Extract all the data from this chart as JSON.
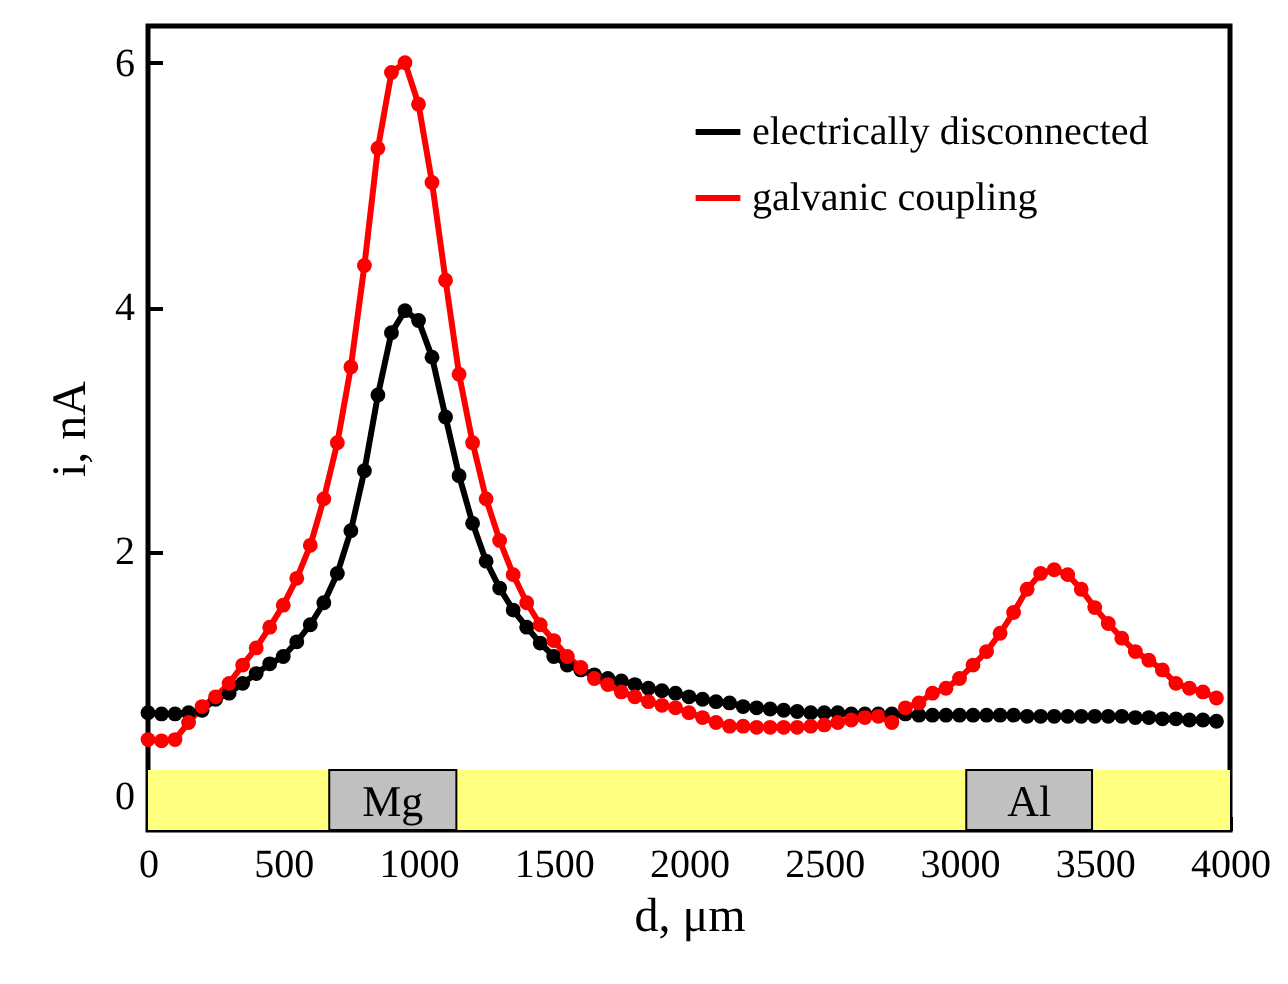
{
  "chart_data": {
    "type": "line",
    "xlabel": "d, μm",
    "ylabel": "i, nA",
    "x": [
      0,
      50,
      100,
      150,
      200,
      250,
      300,
      350,
      400,
      450,
      500,
      550,
      600,
      650,
      700,
      750,
      800,
      850,
      900,
      950,
      1000,
      1050,
      1100,
      1150,
      1200,
      1250,
      1300,
      1350,
      1400,
      1450,
      1500,
      1550,
      1600,
      1650,
      1700,
      1750,
      1800,
      1850,
      1900,
      1950,
      2000,
      2050,
      2100,
      2150,
      2200,
      2250,
      2300,
      2350,
      2400,
      2450,
      2500,
      2550,
      2600,
      2650,
      2700,
      2750,
      2800,
      2850,
      2900,
      2950,
      3000,
      3050,
      3100,
      3150,
      3200,
      3250,
      3300,
      3350,
      3400,
      3450,
      3500,
      3550,
      3600,
      3650,
      3700,
      3750,
      3800,
      3850,
      3900,
      3950
    ],
    "series": [
      {
        "name": "electrically disconnected",
        "color": "#000000",
        "values": [
          0.68,
          0.67,
          0.67,
          0.68,
          0.7,
          0.79,
          0.84,
          0.92,
          1.0,
          1.08,
          1.14,
          1.26,
          1.4,
          1.58,
          1.82,
          2.17,
          2.66,
          3.28,
          3.79,
          3.97,
          3.89,
          3.59,
          3.1,
          2.62,
          2.23,
          1.92,
          1.7,
          1.52,
          1.38,
          1.25,
          1.14,
          1.07,
          1.03,
          0.99,
          0.96,
          0.94,
          0.91,
          0.88,
          0.86,
          0.84,
          0.81,
          0.79,
          0.77,
          0.76,
          0.73,
          0.72,
          0.71,
          0.7,
          0.69,
          0.68,
          0.68,
          0.68,
          0.67,
          0.67,
          0.67,
          0.67,
          0.67,
          0.66,
          0.66,
          0.66,
          0.66,
          0.66,
          0.66,
          0.66,
          0.66,
          0.65,
          0.65,
          0.65,
          0.65,
          0.65,
          0.65,
          0.65,
          0.65,
          0.64,
          0.64,
          0.63,
          0.63,
          0.62,
          0.62,
          0.61
        ]
      },
      {
        "name": "galvanic coupling",
        "color": "#ff0000",
        "values": [
          0.46,
          0.45,
          0.46,
          0.6,
          0.73,
          0.81,
          0.92,
          1.07,
          1.21,
          1.38,
          1.56,
          1.78,
          2.05,
          2.43,
          2.89,
          3.51,
          4.34,
          5.3,
          5.92,
          6.0,
          5.66,
          5.02,
          4.22,
          3.45,
          2.89,
          2.43,
          2.09,
          1.81,
          1.58,
          1.4,
          1.27,
          1.14,
          1.05,
          0.96,
          0.91,
          0.85,
          0.81,
          0.77,
          0.74,
          0.72,
          0.68,
          0.64,
          0.6,
          0.57,
          0.57,
          0.56,
          0.56,
          0.56,
          0.56,
          0.57,
          0.58,
          0.6,
          0.62,
          0.64,
          0.65,
          0.6,
          0.72,
          0.76,
          0.84,
          0.88,
          0.96,
          1.07,
          1.18,
          1.33,
          1.5,
          1.69,
          1.82,
          1.85,
          1.81,
          1.69,
          1.54,
          1.41,
          1.29,
          1.18,
          1.11,
          1.03,
          0.92,
          0.88,
          0.85,
          0.8
        ]
      }
    ],
    "xlim": [
      0,
      4000
    ],
    "xticks": [
      0,
      500,
      1000,
      1500,
      2000,
      2500,
      3000,
      3500,
      4000
    ],
    "ylim": [
      -0.28,
      6.3
    ],
    "yticks": [
      0,
      2,
      4,
      6
    ],
    "bands": [
      {
        "axis": "x",
        "from": 0,
        "to": 4000,
        "color": "#ffff80"
      },
      {
        "axis": "x",
        "from": 670,
        "to": 1140,
        "label": "Mg",
        "color": "#c0c0c0"
      },
      {
        "axis": "x",
        "from": 3025,
        "to": 3490,
        "label": "Al",
        "color": "#c0c0c0"
      }
    ],
    "marker": "circle",
    "line_style": "solid",
    "legend": "top right",
    "grid": false
  }
}
